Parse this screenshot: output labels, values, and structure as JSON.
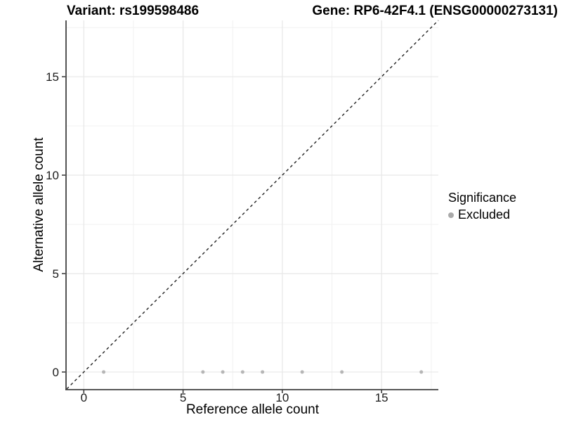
{
  "chart_data": {
    "type": "scatter",
    "title_left": "Variant: rs199598486",
    "title_right": "Gene: RP6-42F4.1 (ENSG00000273131)",
    "xlabel": "Reference allele count",
    "ylabel": "Alternative allele count",
    "xlim": [
      -0.86,
      17.86
    ],
    "ylim": [
      -0.86,
      17.86
    ],
    "xticks": [
      0,
      5,
      10,
      15
    ],
    "yticks": [
      0,
      5,
      10,
      15
    ],
    "minor_x": [
      2.5,
      7.5,
      12.5,
      17.5
    ],
    "minor_y": [
      2.5,
      7.5,
      12.5,
      17.5
    ],
    "grid": true,
    "series": [
      {
        "name": "Excluded",
        "color": "#b6b6b6",
        "points": [
          [
            1,
            0
          ],
          [
            6,
            0
          ],
          [
            7,
            0
          ],
          [
            8,
            0
          ],
          [
            9,
            0
          ],
          [
            11,
            0
          ],
          [
            13,
            0
          ],
          [
            17,
            0
          ]
        ]
      }
    ],
    "identity_line": {
      "type": "y=x",
      "style": "dashed",
      "color": "#222222",
      "from": [
        -0.86,
        -0.86
      ],
      "to": [
        17.86,
        17.86
      ]
    },
    "legend": {
      "title": "Significance",
      "position": "right",
      "entries": [
        {
          "label": "Excluded",
          "color": "#a9a9a9"
        }
      ]
    },
    "colors": {
      "axis_line": "#404040",
      "tick": "#333333",
      "grid_major": "#e7e7e7",
      "grid_minor": "#f1f1f1",
      "background": "#ffffff"
    }
  }
}
